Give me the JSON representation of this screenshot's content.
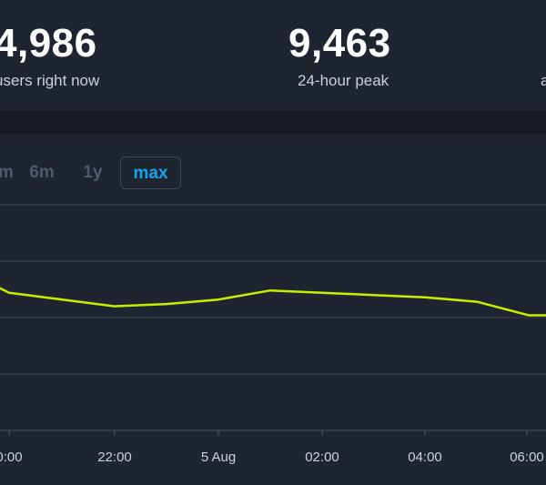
{
  "stats": [
    {
      "value": "4,986",
      "label": "users right now"
    },
    {
      "value": "9,463",
      "label": "24-hour peak"
    },
    {
      "value": "",
      "label": "a"
    }
  ],
  "ranges": [
    "m",
    "6m",
    "1y",
    "max"
  ],
  "active_range": "max",
  "colors": {
    "line": "#c4f000",
    "accent": "#1aa3e8",
    "grid": "#3a4350"
  },
  "chart_data": {
    "type": "line",
    "title": "",
    "xlabel": "",
    "ylabel": "",
    "x_ticks": [
      "0:00",
      "22:00",
      "5 Aug",
      "02:00",
      "04:00",
      "06:00"
    ],
    "grid": true,
    "series": [
      {
        "values": [
          [
            "4 Aug 20:00",
            0.63
          ],
          [
            "4 Aug 20:30",
            0.61
          ],
          [
            "4 Aug 22:00",
            0.55
          ],
          [
            "4 Aug 23:00",
            0.56
          ],
          [
            "5 Aug 00:00",
            0.58
          ],
          [
            "5 Aug 01:00",
            0.62
          ],
          [
            "5 Aug 02:00",
            0.61
          ],
          [
            "5 Aug 03:00",
            0.6
          ],
          [
            "5 Aug 04:00",
            0.59
          ],
          [
            "5 Aug 05:00",
            0.57
          ],
          [
            "5 Aug 06:00",
            0.51
          ],
          [
            "5 Aug 06:20",
            0.51
          ]
        ]
      }
    ]
  }
}
